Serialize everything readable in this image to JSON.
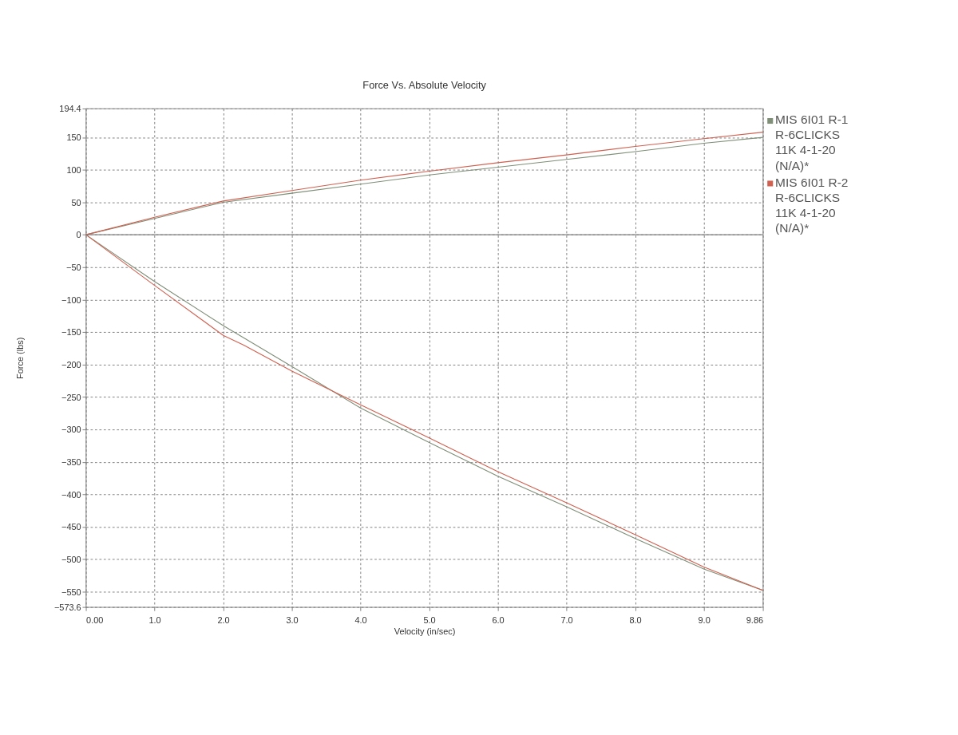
{
  "chart_data": {
    "type": "line",
    "title": "Force Vs. Absolute Velocity",
    "xlabel": "Velocity (in/sec)",
    "ylabel": "Force (lbs)",
    "xlim": [
      0,
      9.86
    ],
    "ylim": [
      -573.6,
      194.4
    ],
    "xticks": [
      {
        "value": 0,
        "label": "0.00"
      },
      {
        "value": 1,
        "label": "1.0"
      },
      {
        "value": 2,
        "label": "2.0"
      },
      {
        "value": 3,
        "label": "3.0"
      },
      {
        "value": 4,
        "label": "4.0"
      },
      {
        "value": 5,
        "label": "5.0"
      },
      {
        "value": 6,
        "label": "6.0"
      },
      {
        "value": 7,
        "label": "7.0"
      },
      {
        "value": 8,
        "label": "8.0"
      },
      {
        "value": 9,
        "label": "9.0"
      },
      9.86
    ],
    "yticks": [
      194.4,
      150,
      100,
      50,
      0,
      -50,
      -100,
      -150,
      -200,
      -250,
      -300,
      -350,
      -400,
      -450,
      -500,
      -550,
      -573.6
    ],
    "grid": true,
    "legend": "right",
    "marker": "none",
    "line_style": "solid",
    "ref_lines": [
      {
        "axis": "y",
        "value": 0,
        "color": "#808080"
      }
    ],
    "series": [
      {
        "name": "MIS 6I01 R-1 R-6CLICKS 11K 4-1-20 (N/A)*",
        "color": "#7f8f78",
        "x": [
          9.86,
          9,
          8,
          7,
          6,
          5,
          4,
          3,
          2,
          1,
          0,
          1,
          2,
          3,
          4,
          5,
          6,
          7,
          8,
          9,
          9.86
        ],
        "values": [
          150,
          141,
          128,
          116,
          104,
          92,
          78,
          64,
          50,
          25,
          0,
          -72,
          -140,
          -203,
          -267,
          -320,
          -372,
          -419,
          -468,
          -515,
          -548
        ]
      },
      {
        "name": "MIS 6I01 R-2 R-6CLICKS 11K 4-1-20 (N/A)*",
        "color": "#d0604f",
        "x": [
          9.86,
          9,
          8,
          7,
          6,
          5,
          4,
          3,
          2,
          1,
          0,
          1,
          2,
          2.3,
          3,
          4,
          5,
          6,
          7,
          8,
          9,
          9.86
        ],
        "values": [
          158,
          148,
          136,
          123,
          111,
          98,
          84,
          68,
          52,
          27,
          0,
          -78,
          -155,
          -170,
          -210,
          -262,
          -313,
          -365,
          -413,
          -462,
          -512,
          -548
        ]
      }
    ]
  }
}
